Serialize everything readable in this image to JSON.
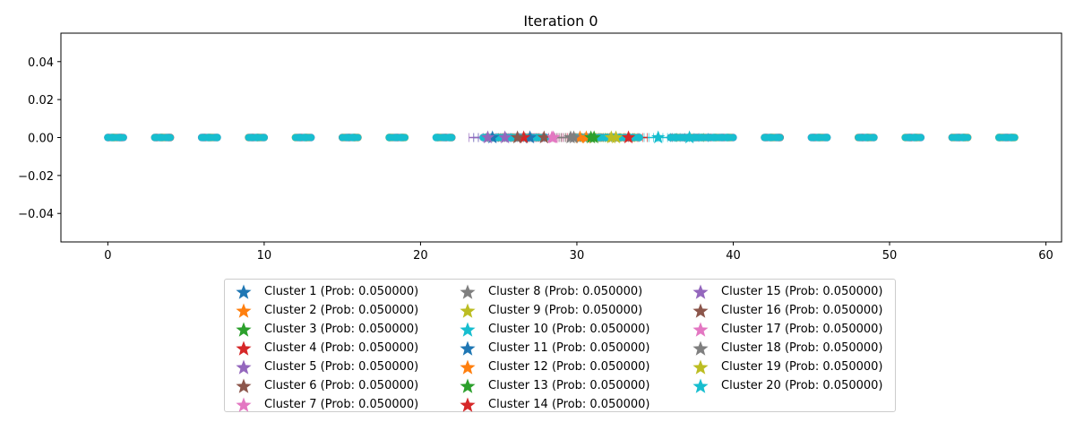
{
  "chart_data": {
    "type": "scatter",
    "title": "Iteration 0",
    "xlabel": "",
    "ylabel": "",
    "xlim": [
      -3,
      61
    ],
    "ylim": [
      -0.055,
      0.055
    ],
    "x_ticks": [
      0,
      10,
      20,
      30,
      40,
      50,
      60
    ],
    "y_ticks": [
      -0.04,
      -0.02,
      0.0,
      0.02,
      0.04
    ],
    "y_tick_labels": [
      "−0.04",
      "−0.02",
      "0.00",
      "0.02",
      "0.04"
    ],
    "legend_position": "below",
    "point_groups": [
      [
        0,
        1
      ],
      [
        3,
        4
      ],
      [
        6,
        7
      ],
      [
        9,
        10
      ],
      [
        12,
        13
      ],
      [
        15,
        16
      ],
      [
        18,
        19
      ],
      [
        21,
        22
      ],
      [
        24,
        28
      ],
      [
        30,
        34
      ],
      [
        36,
        40
      ],
      [
        42,
        43
      ],
      [
        45,
        46
      ],
      [
        48,
        49
      ],
      [
        51,
        52
      ],
      [
        54,
        55
      ],
      [
        57,
        58
      ]
    ],
    "data_points_y": 0,
    "series": [
      {
        "name": "Cluster 1 (Prob: 0.050000)",
        "color": "#1f77b4",
        "center": 27.0
      },
      {
        "name": "Cluster 2 (Prob: 0.050000)",
        "color": "#ff7f0e",
        "center": 30.2
      },
      {
        "name": "Cluster 3 (Prob: 0.050000)",
        "color": "#2ca02c",
        "center": 31.1
      },
      {
        "name": "Cluster 4 (Prob: 0.050000)",
        "color": "#d62728",
        "center": 26.6
      },
      {
        "name": "Cluster 5 (Prob: 0.050000)",
        "color": "#9467bd",
        "center": 25.4
      },
      {
        "name": "Cluster 6 (Prob: 0.050000)",
        "color": "#8c564b",
        "center": 26.2
      },
      {
        "name": "Cluster 7 (Prob: 0.050000)",
        "color": "#e377c2",
        "center": 28.4
      },
      {
        "name": "Cluster 8 (Prob: 0.050000)",
        "color": "#7f7f7f",
        "center": 29.8
      },
      {
        "name": "Cluster 9 (Prob: 0.050000)",
        "color": "#bcbd22",
        "center": 32.5
      },
      {
        "name": "Cluster 10 (Prob: 0.050000)",
        "color": "#17becf",
        "center": 35.2
      },
      {
        "name": "Cluster 11 (Prob: 0.050000)",
        "color": "#1f77b4",
        "center": 24.6
      },
      {
        "name": "Cluster 12 (Prob: 0.050000)",
        "color": "#ff7f0e",
        "center": 30.6
      },
      {
        "name": "Cluster 13 (Prob: 0.050000)",
        "color": "#2ca02c",
        "center": 30.9
      },
      {
        "name": "Cluster 14 (Prob: 0.050000)",
        "color": "#d62728",
        "center": 33.3
      },
      {
        "name": "Cluster 15 (Prob: 0.050000)",
        "color": "#9467bd",
        "center": 24.3
      },
      {
        "name": "Cluster 16 (Prob: 0.050000)",
        "color": "#8c564b",
        "center": 27.9
      },
      {
        "name": "Cluster 17 (Prob: 0.050000)",
        "color": "#e377c2",
        "center": 28.5
      },
      {
        "name": "Cluster 18 (Prob: 0.050000)",
        "color": "#7f7f7f",
        "center": 29.6
      },
      {
        "name": "Cluster 19 (Prob: 0.050000)",
        "color": "#bcbd22",
        "center": 32.2
      },
      {
        "name": "Cluster 20 (Prob: 0.050000)",
        "color": "#17becf",
        "center": 37.2
      }
    ]
  }
}
